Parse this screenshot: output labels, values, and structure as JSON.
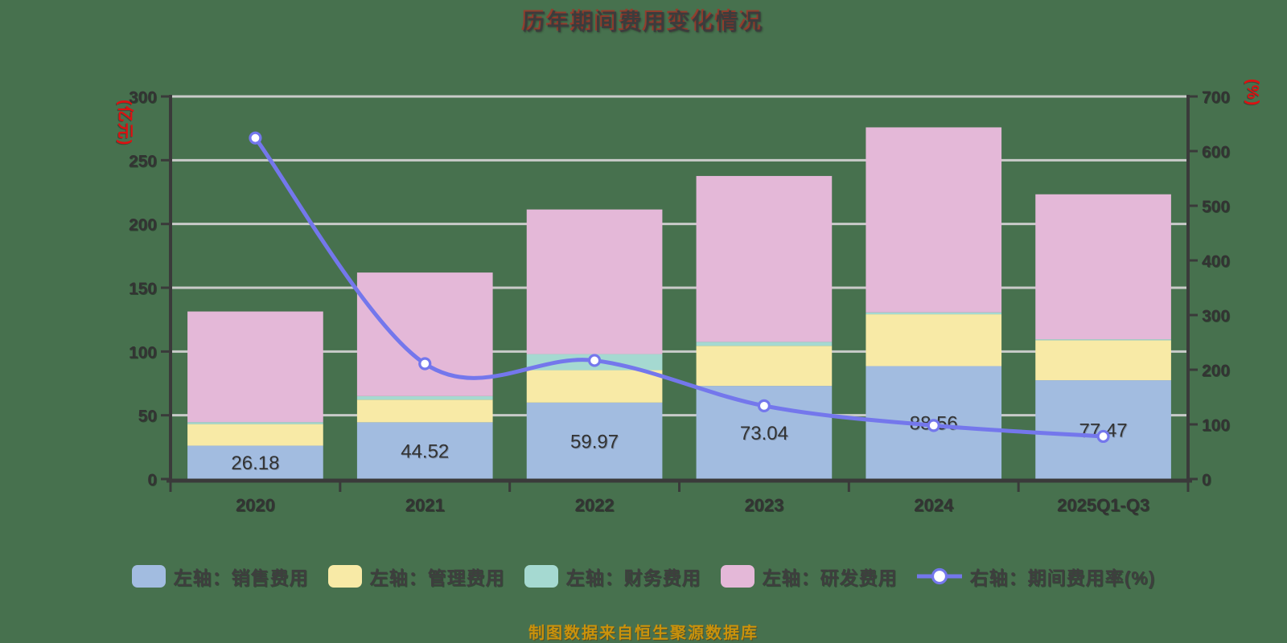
{
  "title": "历年期间费用变化情况",
  "source_note": "制图数据来自恒生聚源数据库",
  "colors": {
    "background": "#47714E",
    "sales": "#a2bce0",
    "admin": "#f8eaa6",
    "finance": "#a5d9d1",
    "rnd": "#e4b8d8",
    "line": "#7477ec",
    "marker_fill": "#ffffff",
    "grid": "#d0d0d0",
    "axis": "#3a3a3a",
    "tick_text": "#333333",
    "bar_label": "#333333",
    "unit_label": "#dd1111",
    "source_note_color": "#c9920c"
  },
  "left_axis": {
    "unit": "(亿元)",
    "min": 0,
    "max": 300,
    "step": 50,
    "ticks": [
      "0",
      "50",
      "100",
      "150",
      "200",
      "250",
      "300"
    ]
  },
  "right_axis": {
    "unit": "(%)",
    "min": 0,
    "max": 700,
    "step": 100,
    "ticks": [
      "0",
      "100",
      "200",
      "300",
      "400",
      "500",
      "600",
      "700"
    ]
  },
  "legend": [
    {
      "label": "左轴：销售费用",
      "type": "bar",
      "color_key": "sales"
    },
    {
      "label": "左轴：管理费用",
      "type": "bar",
      "color_key": "admin"
    },
    {
      "label": "左轴：财务费用",
      "type": "bar",
      "color_key": "finance"
    },
    {
      "label": "左轴：研发费用",
      "type": "bar",
      "color_key": "rnd"
    },
    {
      "label": "右轴：期间费用率(%)",
      "type": "line",
      "color_key": "line"
    }
  ],
  "chart_data": {
    "type": "bar",
    "subtype": "stacked-bar-with-line",
    "categories": [
      "2020",
      "2021",
      "2022",
      "2023",
      "2024",
      "2025Q1-Q3"
    ],
    "series": [
      {
        "name": "左轴：销售费用",
        "kind": "bar",
        "axis": "left",
        "color_key": "sales",
        "values": [
          26.18,
          44.52,
          59.97,
          73.04,
          88.56,
          77.47
        ],
        "labels": [
          "26.18",
          "44.52",
          "59.97",
          "73.04",
          "88.56",
          "77.47"
        ]
      },
      {
        "name": "左轴：管理费用",
        "kind": "bar",
        "axis": "left",
        "color_key": "admin",
        "values": [
          16.9,
          17.7,
          25.4,
          31.4,
          40.6,
          31.3
        ]
      },
      {
        "name": "左轴：财务费用",
        "kind": "bar",
        "axis": "left",
        "color_key": "finance",
        "values": [
          1.5,
          2.8,
          12.6,
          3.1,
          1.5,
          0.8
        ]
      },
      {
        "name": "左轴：研发费用",
        "kind": "bar",
        "axis": "left",
        "color_key": "rnd",
        "values": [
          86.8,
          96.9,
          113.4,
          130.1,
          145.1,
          113.7
        ]
      },
      {
        "name": "右轴：期间费用率(%)",
        "kind": "line",
        "axis": "right",
        "color_key": "line",
        "values": [
          624,
          211,
          217,
          134,
          98,
          78
        ]
      }
    ],
    "totals_estimated": [
      131.4,
      161.9,
      211.4,
      237.6,
      275.8,
      223.3
    ],
    "left_ylim": [
      0,
      300
    ],
    "right_ylim": [
      0,
      700
    ],
    "grid": true,
    "legend_position": "bottom"
  }
}
